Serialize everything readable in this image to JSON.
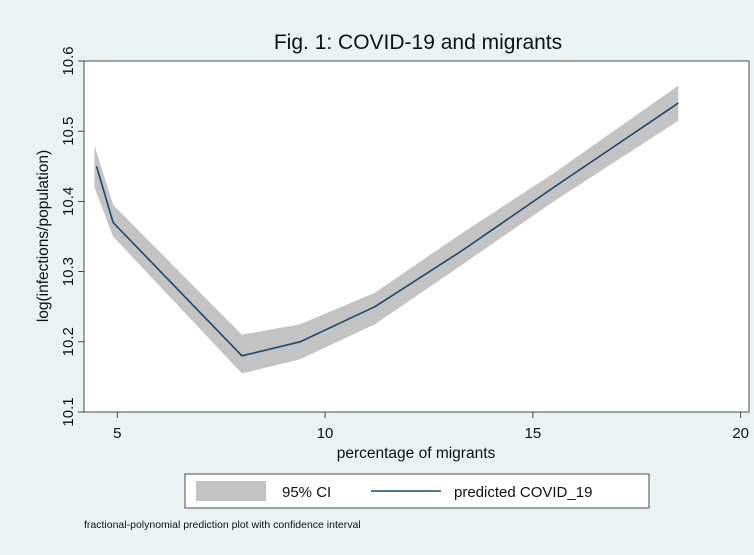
{
  "chart_data": {
    "type": "area",
    "title": "Fig. 1: COVID-19 and migrants",
    "xlabel": "percentage of migrants",
    "ylabel": "log(infections/population)",
    "xlim": [
      4.2,
      20.2
    ],
    "ylim": [
      10.1,
      10.6
    ],
    "xticks": [
      5,
      10,
      15,
      20
    ],
    "yticks": [
      10.1,
      10.2,
      10.3,
      10.4,
      10.5,
      10.6
    ],
    "xtick_labels": [
      "5",
      "10",
      "15",
      "20"
    ],
    "ytick_labels": [
      "10.1",
      "10.2",
      "10.3",
      "10.4",
      "10.5",
      "10.6"
    ],
    "grid": false,
    "legend_position": "bottom",
    "series": [
      {
        "name": "predicted COVID_19",
        "kind": "line",
        "color": "#1a476f",
        "x": [
          4.5,
          4.9,
          8.0,
          9.4,
          11.2,
          13.3,
          15.5,
          18.5
        ],
        "y": [
          10.45,
          10.37,
          10.18,
          10.2,
          10.25,
          10.33,
          10.42,
          10.54
        ]
      },
      {
        "name": "95% CI",
        "kind": "band",
        "color": "#c3c3c3",
        "x": [
          4.45,
          4.9,
          8.0,
          9.4,
          11.2,
          13.3,
          15.5,
          18.5
        ],
        "lower": [
          10.42,
          10.35,
          10.155,
          10.175,
          10.225,
          10.31,
          10.4,
          10.515
        ],
        "upper": [
          10.48,
          10.395,
          10.21,
          10.225,
          10.27,
          10.355,
          10.44,
          10.565
        ]
      }
    ],
    "legend": [
      "95% CI",
      "predicted COVID_19"
    ],
    "note": "fractional-polynomial prediction plot with confidence interval"
  }
}
